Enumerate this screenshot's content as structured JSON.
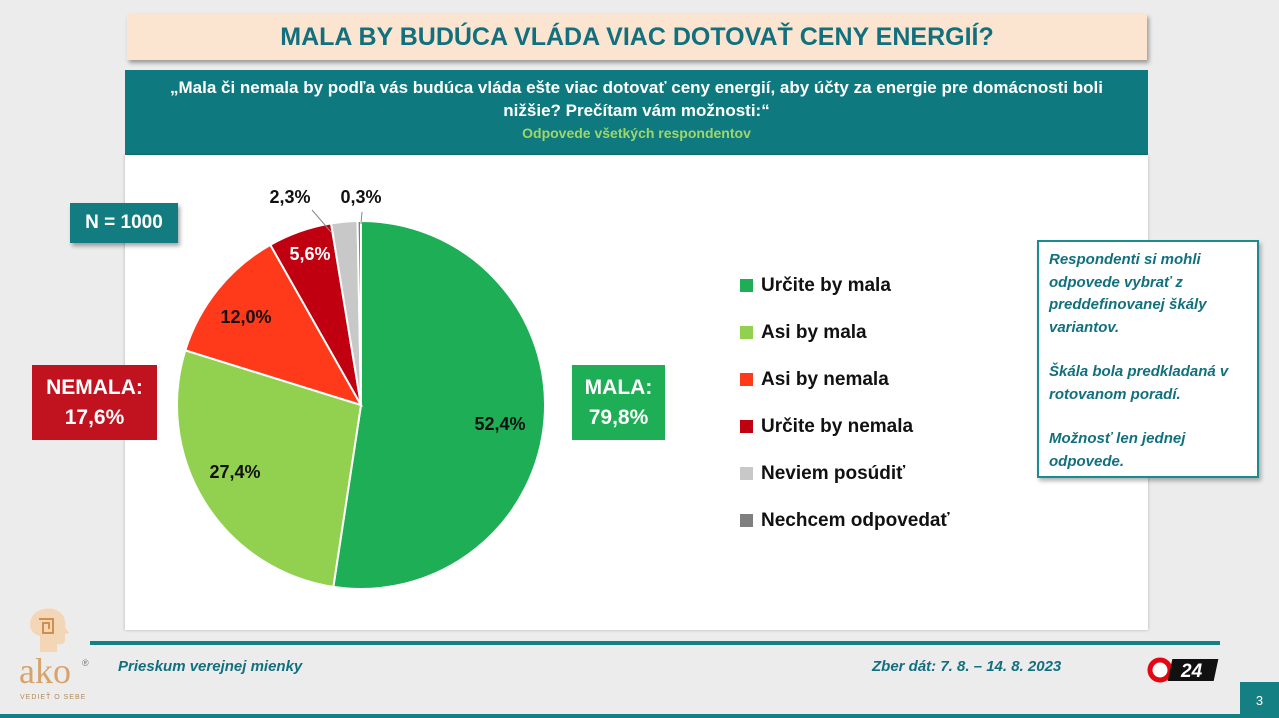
{
  "title": "MALA BY BUDÚCA VLÁDA VIAC DOTOVAŤ CENY ENERGIÍ?",
  "question": "„Mala či nemala by podľa vás budúca vláda ešte viac dotovať ceny energií, aby účty za energie pre domácnosti boli nižšie? Prečítam vám možnosti:“",
  "subtitle": "Odpovede všetkých respondentov",
  "sample": "N = 1000",
  "groups": {
    "nemala_label": "NEMALA:",
    "nemala_value": "17,6%",
    "mala_label": "MALA:",
    "mala_value": "79,8%"
  },
  "chart_data": {
    "type": "pie",
    "slices": [
      {
        "label": "Určite by mala",
        "value": 52.4,
        "display": "52,4%",
        "color": "#1eae55"
      },
      {
        "label": "Asi by mala",
        "value": 27.4,
        "display": "27,4%",
        "color": "#92d050"
      },
      {
        "label": "Asi by nemala",
        "value": 12.0,
        "display": "12,0%",
        "color": "#ff3a1a"
      },
      {
        "label": "Určite by nemala",
        "value": 5.6,
        "display": "5,6%",
        "color": "#c00010"
      },
      {
        "label": "Neviem posúdiť",
        "value": 2.3,
        "display": "2,3%",
        "color": "#c8c8c8"
      },
      {
        "label": "Nechcem odpovedať",
        "value": 0.3,
        "display": "0,3%",
        "color": "#7f7f7f"
      }
    ],
    "start": "12 o'clock",
    "direction": "clockwise",
    "legend_position": "right"
  },
  "note": {
    "p1": "Respondenti si mohli odpovede vybrať z preddefinovanej škály variantov.",
    "p2": "Škála bola predkladaná v rotovanom poradí.",
    "p3": "Možnosť len jednej odpovede."
  },
  "footer": {
    "left": "Prieskum verejnej mienky",
    "right": "Zber dát: 7. 8. – 14. 8. 2023",
    "page": "3"
  },
  "logo": {
    "word": "ako",
    "tagline": "VEDIEŤ O SEBE",
    "reg": "®",
    "tv": "24"
  }
}
